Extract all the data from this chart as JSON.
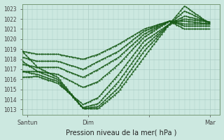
{
  "title": "Pression niveau de la mer( hPa )",
  "ylabel_values": [
    1013,
    1014,
    1015,
    1016,
    1017,
    1018,
    1019,
    1020,
    1021,
    1022,
    1023
  ],
  "ylim": [
    1012.5,
    1023.5
  ],
  "xlim": [
    0,
    78
  ],
  "xtick_positions": [
    2,
    26,
    50,
    74
  ],
  "xtick_labels": [
    "Santun",
    "Dim",
    "",
    "Mar"
  ],
  "bg_color": "#cce8e0",
  "grid_color": "#aaccC4",
  "line_color": "#1a5c1a",
  "marker_color": "#1a5c1a",
  "lines": [
    {
      "x": [
        0,
        6,
        14,
        24,
        30,
        38,
        48,
        58,
        64,
        74
      ],
      "y": [
        1018.8,
        1017.2,
        1016.2,
        1013.1,
        1013.1,
        1014.8,
        1018.2,
        1021.5,
        1023.3,
        1021.5
      ]
    },
    {
      "x": [
        0,
        6,
        14,
        24,
        30,
        38,
        48,
        58,
        64,
        74
      ],
      "y": [
        1017.8,
        1016.8,
        1016.0,
        1013.1,
        1013.3,
        1015.2,
        1018.8,
        1021.5,
        1022.8,
        1021.6
      ]
    },
    {
      "x": [
        0,
        6,
        14,
        24,
        30,
        38,
        48,
        58,
        64,
        74
      ],
      "y": [
        1016.8,
        1016.5,
        1015.8,
        1013.2,
        1013.6,
        1015.8,
        1019.3,
        1021.5,
        1022.3,
        1021.7
      ]
    },
    {
      "x": [
        0,
        6,
        14,
        24,
        30,
        38,
        48,
        58,
        64,
        74
      ],
      "y": [
        1016.2,
        1016.3,
        1015.6,
        1013.5,
        1014.2,
        1016.5,
        1019.8,
        1021.5,
        1022.0,
        1021.7
      ]
    },
    {
      "x": [
        0,
        6,
        14,
        24,
        30,
        38,
        48,
        58,
        64,
        74
      ],
      "y": [
        1016.8,
        1016.8,
        1016.5,
        1015.2,
        1015.8,
        1017.5,
        1020.2,
        1021.8,
        1021.8,
        1021.5
      ]
    },
    {
      "x": [
        0,
        6,
        14,
        24,
        30,
        38,
        48,
        58,
        64,
        74
      ],
      "y": [
        1017.5,
        1017.2,
        1017.2,
        1016.2,
        1017.0,
        1018.2,
        1020.5,
        1021.8,
        1021.5,
        1021.5
      ]
    },
    {
      "x": [
        0,
        6,
        14,
        24,
        30,
        38,
        48,
        58,
        64,
        74
      ],
      "y": [
        1018.2,
        1017.8,
        1017.8,
        1017.0,
        1017.8,
        1018.8,
        1020.8,
        1021.8,
        1021.3,
        1021.3
      ]
    },
    {
      "x": [
        0,
        6,
        14,
        24,
        30,
        38,
        48,
        58,
        64,
        74
      ],
      "y": [
        1018.8,
        1018.5,
        1018.5,
        1018.0,
        1018.5,
        1019.5,
        1021.0,
        1021.8,
        1021.0,
        1021.0
      ]
    }
  ]
}
